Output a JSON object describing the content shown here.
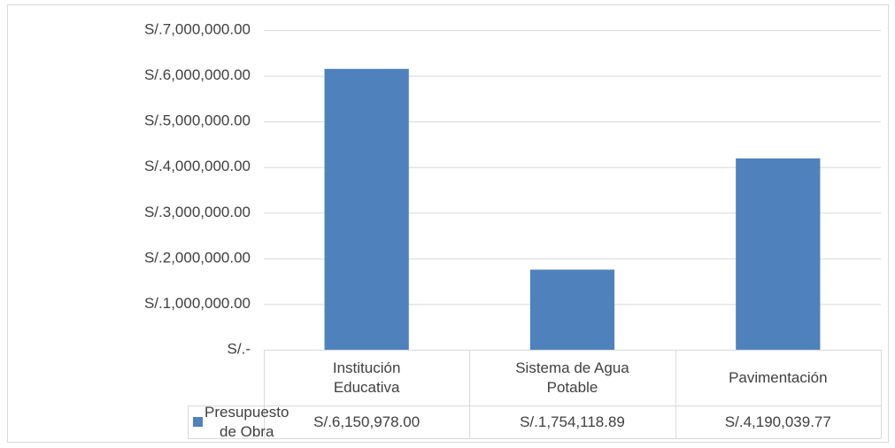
{
  "chart_data": {
    "type": "bar",
    "categories": [
      "Institución Educativa",
      "Sistema de Agua Potable",
      "Pavimentación"
    ],
    "series": [
      {
        "name": "Presupuesto de Obra",
        "color": "#4f81bd",
        "values": [
          6150978,
          1754118.89,
          4190039.77
        ],
        "value_labels": [
          "S/.6,150,978.00",
          "S/.1,754,118.89",
          "S/.4,190,039.77"
        ]
      }
    ],
    "ylim": [
      0,
      7000000
    ],
    "yticks": [
      {
        "value": 0,
        "label": "S/.-"
      },
      {
        "value": 1000000,
        "label": "S/.1,000,000.00"
      },
      {
        "value": 2000000,
        "label": "S/.2,000,000.00"
      },
      {
        "value": 3000000,
        "label": "S/.3,000,000.00"
      },
      {
        "value": 4000000,
        "label": "S/.4,000,000.00"
      },
      {
        "value": 5000000,
        "label": "S/.5,000,000.00"
      },
      {
        "value": 6000000,
        "label": "S/.6,000,000.00"
      },
      {
        "value": 7000000,
        "label": "S/.7,000,000.00"
      }
    ],
    "grid": true
  }
}
